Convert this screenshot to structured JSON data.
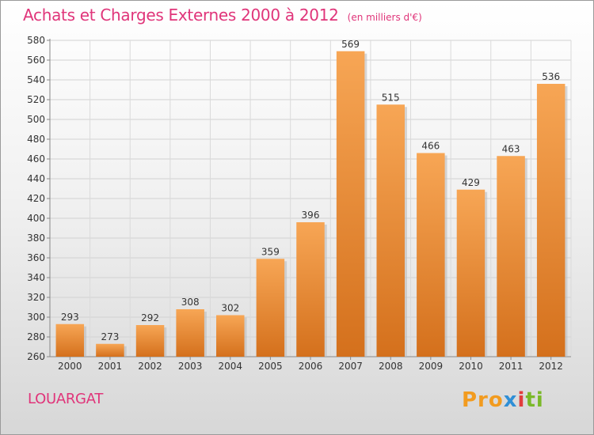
{
  "title": "Achats et Charges Externes 2000 à 2012",
  "subtitle": "(en milliers d'€)",
  "commune": "LOUARGAT",
  "logo_text": "Proxiti",
  "chart_data": {
    "type": "bar",
    "title": "Achats et Charges Externes 2000 à 2012",
    "subtitle": "(en milliers d'€)",
    "categories": [
      "2000",
      "2001",
      "2002",
      "2003",
      "2004",
      "2005",
      "2006",
      "2007",
      "2008",
      "2009",
      "2010",
      "2011",
      "2012"
    ],
    "values": [
      293,
      273,
      292,
      308,
      302,
      359,
      396,
      569,
      515,
      466,
      429,
      463,
      536
    ],
    "ylim": [
      260,
      580
    ],
    "yticks": [
      260,
      280,
      300,
      320,
      340,
      360,
      380,
      400,
      420,
      440,
      460,
      480,
      500,
      520,
      540,
      560,
      580
    ],
    "grid": true,
    "colors": {
      "bar_top": "#f7a655",
      "bar_bottom": "#d4701c",
      "accent": "#e0357a"
    }
  }
}
